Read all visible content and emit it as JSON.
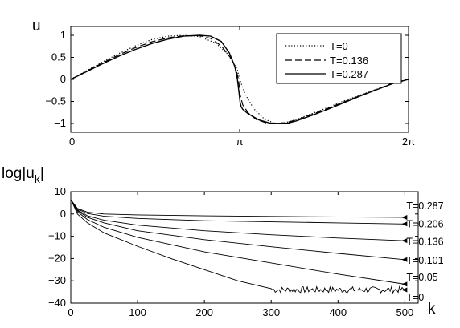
{
  "chart_data": [
    {
      "type": "line",
      "ylabel": "u",
      "xlim": [
        0,
        6.2832
      ],
      "ylim": [
        -1.2,
        1.2
      ],
      "xticks": [
        {
          "value": 0,
          "label": "0"
        },
        {
          "value": 3.1416,
          "label": "π"
        },
        {
          "value": 6.2832,
          "label": "2π"
        }
      ],
      "yticks": [
        {
          "value": 1,
          "label": "1"
        },
        {
          "value": 0.5,
          "label": "0.5"
        },
        {
          "value": 0,
          "label": "0"
        },
        {
          "value": -0.5,
          "label": "−0.5"
        },
        {
          "value": -1,
          "label": "−1"
        }
      ],
      "legend_position": "top-right",
      "series": [
        {
          "name": "T=0",
          "style": "dotted",
          "x": [
            0,
            0.3,
            0.6,
            0.9,
            1.2,
            1.5,
            1.8,
            2.1,
            2.4,
            2.7,
            2.9,
            3.0,
            3.1,
            3.1416,
            3.25,
            3.4,
            3.6,
            3.8,
            4.0,
            4.2,
            4.5,
            4.8,
            5.1,
            5.4,
            5.7,
            6.0,
            6.2832
          ],
          "y": [
            0,
            0.2,
            0.4,
            0.59,
            0.76,
            0.9,
            0.98,
            1.0,
            0.97,
            0.82,
            0.6,
            0.43,
            0.22,
            0.0,
            -0.35,
            -0.66,
            -0.9,
            -1.0,
            -0.98,
            -0.91,
            -0.77,
            -0.63,
            -0.48,
            -0.35,
            -0.22,
            -0.09,
            0
          ]
        },
        {
          "name": "T=0.136",
          "style": "dashed",
          "x": [
            0,
            0.3,
            0.6,
            0.9,
            1.2,
            1.5,
            1.8,
            2.1,
            2.4,
            2.6,
            2.8,
            3.0,
            3.08,
            3.12,
            3.15,
            3.2,
            3.3,
            3.45,
            3.65,
            3.85,
            4.0,
            4.2,
            4.5,
            4.8,
            5.1,
            5.4,
            5.7,
            6.0,
            6.2832
          ],
          "y": [
            0,
            0.19,
            0.38,
            0.56,
            0.72,
            0.85,
            0.94,
            0.99,
            0.99,
            0.93,
            0.76,
            0.45,
            0.2,
            0.0,
            -0.35,
            -0.58,
            -0.76,
            -0.91,
            -0.99,
            -1.0,
            -0.98,
            -0.92,
            -0.79,
            -0.65,
            -0.5,
            -0.36,
            -0.22,
            -0.08,
            0
          ]
        },
        {
          "name": "T=0.287",
          "style": "solid",
          "x": [
            0,
            0.3,
            0.6,
            0.9,
            1.2,
            1.5,
            1.8,
            2.1,
            2.4,
            2.6,
            2.8,
            2.95,
            3.05,
            3.1,
            3.13,
            3.15,
            3.17,
            3.2,
            3.3,
            3.5,
            3.7,
            3.9,
            4.05,
            4.2,
            4.5,
            4.8,
            5.1,
            5.4,
            5.7,
            6.0,
            6.2832
          ],
          "y": [
            0,
            0.18,
            0.36,
            0.53,
            0.68,
            0.81,
            0.91,
            0.98,
            1.0,
            0.98,
            0.86,
            0.6,
            0.3,
            0.0,
            -0.3,
            -0.52,
            -0.62,
            -0.68,
            -0.78,
            -0.92,
            -0.99,
            -1.0,
            -0.99,
            -0.94,
            -0.81,
            -0.67,
            -0.52,
            -0.37,
            -0.23,
            -0.09,
            0
          ]
        }
      ]
    },
    {
      "type": "line",
      "ylabel": "log|u",
      "ylabel_sub": "k",
      "ylabel_end": "|",
      "xlabel": "k",
      "xlim": [
        0,
        520
      ],
      "ylim": [
        -40,
        10
      ],
      "xticks": [
        {
          "value": 0,
          "label": "0"
        },
        {
          "value": 100,
          "label": "100"
        },
        {
          "value": 200,
          "label": "200"
        },
        {
          "value": 300,
          "label": "300"
        },
        {
          "value": 400,
          "label": "400"
        },
        {
          "value": 500,
          "label": "500"
        }
      ],
      "yticks": [
        {
          "value": 10,
          "label": "10"
        },
        {
          "value": 0,
          "label": "0"
        },
        {
          "value": -10,
          "label": "−10"
        },
        {
          "value": -20,
          "label": "−20"
        },
        {
          "value": -30,
          "label": "−30"
        },
        {
          "value": -40,
          "label": "−40"
        }
      ],
      "series": [
        {
          "name": "T=0.287",
          "label_y": 3.5,
          "k": [
            1,
            10,
            25,
            50,
            100,
            200,
            300,
            400,
            500
          ],
          "y": [
            6,
            2.5,
            0.8,
            0,
            -0.4,
            -0.8,
            -1.1,
            -1.3,
            -1.5
          ]
        },
        {
          "name": "T=0.206",
          "label_y": -4.5,
          "k": [
            1,
            10,
            25,
            50,
            100,
            200,
            300,
            400,
            500
          ],
          "y": [
            6,
            2.2,
            0.2,
            -1.0,
            -2.0,
            -3.0,
            -3.5,
            -4.0,
            -4.5
          ]
        },
        {
          "name": "T=0.136",
          "label_y": -12.5,
          "k": [
            1,
            10,
            25,
            50,
            100,
            200,
            300,
            400,
            500
          ],
          "y": [
            6,
            1.8,
            -0.8,
            -2.8,
            -5.0,
            -7.5,
            -9.3,
            -10.8,
            -12.0
          ]
        },
        {
          "name": "T=0.101",
          "label_y": -21,
          "k": [
            1,
            10,
            25,
            50,
            100,
            200,
            300,
            400,
            500
          ],
          "y": [
            6,
            1.5,
            -1.5,
            -4.0,
            -7.5,
            -11.5,
            -14.7,
            -17.7,
            -20.5
          ]
        },
        {
          "name": "T=0.05",
          "label_y": -28.5,
          "k": [
            1,
            10,
            25,
            50,
            100,
            200,
            300,
            400,
            500
          ],
          "y": [
            6,
            1.0,
            -2.5,
            -6.0,
            -10.5,
            -17.0,
            -22.0,
            -27.0,
            -31.5
          ]
        },
        {
          "name": "T=0",
          "label_y": -37.5,
          "noise": true,
          "noise_start": 300,
          "noise_level": -34,
          "noise_amp": 1.4,
          "k": [
            1,
            10,
            25,
            50,
            100,
            150,
            200,
            250,
            300
          ],
          "y": [
            6,
            0,
            -4,
            -8.5,
            -14.5,
            -20,
            -25,
            -30,
            -33.5
          ]
        }
      ]
    }
  ]
}
